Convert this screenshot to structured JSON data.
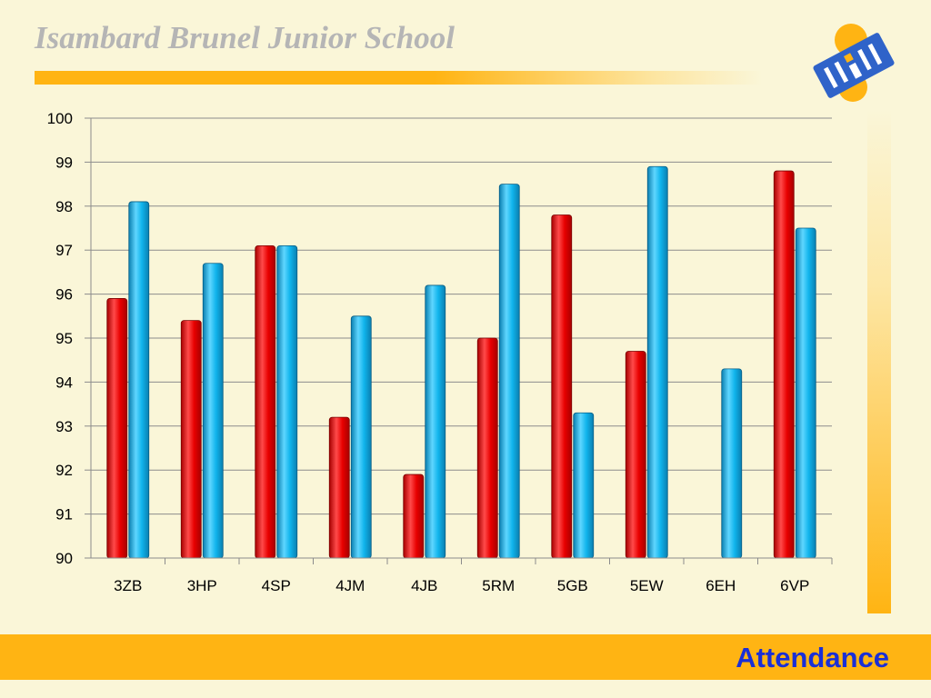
{
  "header": {
    "school_name": "Isambard Brunel Junior School",
    "logo_icon": "school-sun-logo-icon"
  },
  "footer": {
    "label": "Attendance"
  },
  "colors": {
    "background": "#faf6d8",
    "accent": "#ffb413",
    "footer_text": "#1a2fd6",
    "series_red": "#e80000",
    "series_blue": "#10b4ec"
  },
  "chart_data": {
    "type": "bar",
    "title": "",
    "xlabel": "",
    "ylabel": "",
    "categories": [
      "3ZB",
      "3HP",
      "4SP",
      "4JM",
      "4JB",
      "5RM",
      "5GB",
      "5EW",
      "6EH",
      "6VP"
    ],
    "series": [
      {
        "color": "#e80000",
        "values": [
          95.9,
          95.4,
          97.1,
          93.2,
          91.9,
          95.0,
          97.8,
          94.7,
          null,
          98.8
        ]
      },
      {
        "color": "#10b4ec",
        "values": [
          98.1,
          96.7,
          97.1,
          95.5,
          96.2,
          98.5,
          93.3,
          98.9,
          94.3,
          97.5
        ]
      }
    ],
    "ylim": [
      90,
      100
    ],
    "yticks": [
      "90",
      "91",
      "92",
      "93",
      "94",
      "95",
      "96",
      "97",
      "98",
      "99",
      "100"
    ],
    "grid": true,
    "legend": "none"
  }
}
